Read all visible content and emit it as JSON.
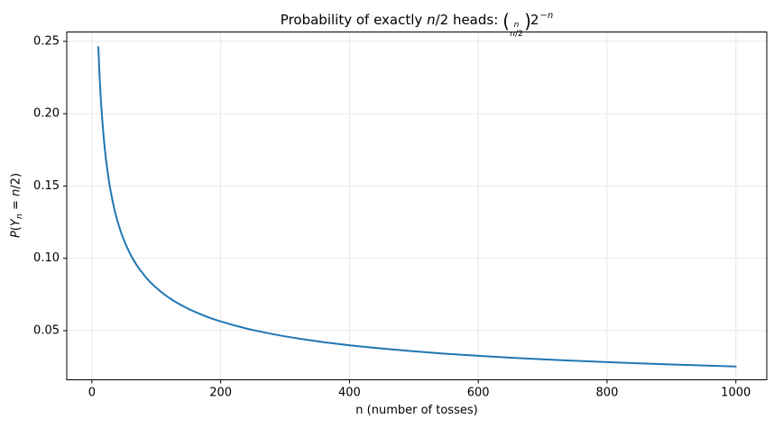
{
  "figure": {
    "title": {
      "part1": "Probability of exactly ",
      "n_italic": "n",
      "part2": "/2 heads: ",
      "paren_open": "(",
      "binom_top": "n",
      "binom_bottom_n": "n",
      "binom_bottom_rest": "/2",
      "paren_close": ")",
      "base": "2",
      "exponent_minus": "−",
      "exponent_n": "n"
    },
    "xlabel": "n (number of tosses)",
    "ylabel": {
      "P": "P",
      "open_paren": "(",
      "Y": "Y",
      "sub_n": "n",
      "equals": " = ",
      "n": "n",
      "close": "/2)"
    }
  },
  "colors": {
    "line": "#1f77b4",
    "grid": "#e6e6e6",
    "spine": "#000000",
    "text": "#000000",
    "background": "#ffffff"
  },
  "chart_data": {
    "type": "line",
    "title": "Probability of exactly n/2 heads: binom(n, n/2) * 2^(-n)",
    "xlabel": "n (number of tosses)",
    "ylabel": "P(Y_n = n/2)",
    "legend": "none",
    "grid": true,
    "line_color": "#1f77b4",
    "line_width": 2,
    "xlim": [
      -39,
      1048
    ],
    "ylim": [
      0.016,
      0.2565
    ],
    "xticks": [
      0,
      200,
      400,
      600,
      800,
      1000
    ],
    "xtick_labels": [
      "0",
      "200",
      "400",
      "600",
      "800",
      "1000"
    ],
    "yticks": [
      0.05,
      0.1,
      0.15,
      0.2,
      0.25
    ],
    "ytick_labels": [
      "0.05",
      "0.10",
      "0.15",
      "0.20",
      "0.25"
    ],
    "x": [
      10,
      12,
      14,
      16,
      18,
      20,
      22,
      24,
      26,
      28,
      30,
      32,
      34,
      36,
      38,
      40,
      44,
      48,
      54,
      60,
      64,
      70,
      74,
      80,
      84,
      90,
      94,
      100,
      110,
      120,
      130,
      140,
      150,
      160,
      170,
      180,
      190,
      200,
      220,
      240,
      260,
      280,
      300,
      320,
      340,
      360,
      380,
      400,
      450,
      500,
      550,
      600,
      650,
      700,
      750,
      800,
      850,
      900,
      950,
      1000
    ],
    "y": [
      0.24609,
      0.22559,
      0.20947,
      0.19638,
      0.18547,
      0.1762,
      0.16818,
      0.16118,
      0.15497,
      0.14944,
      0.14446,
      0.13995,
      0.13583,
      0.13206,
      0.12858,
      0.12537,
      0.1196,
      0.11457,
      0.10808,
      0.10258,
      0.09935,
      0.09503,
      0.09244,
      0.08893,
      0.0868,
      0.08387,
      0.08208,
      0.07959,
      0.0759,
      0.07268,
      0.06984,
      0.06731,
      0.06504,
      0.06298,
      0.06111,
      0.05938,
      0.05781,
      0.05635,
      0.05373,
      0.05145,
      0.04944,
      0.04764,
      0.04603,
      0.04457,
      0.04324,
      0.04202,
      0.0409,
      0.03987,
      0.03759,
      0.03566,
      0.03401,
      0.03256,
      0.03128,
      0.03015,
      0.02912,
      0.0282,
      0.02736,
      0.02659,
      0.02588,
      0.02523
    ]
  }
}
